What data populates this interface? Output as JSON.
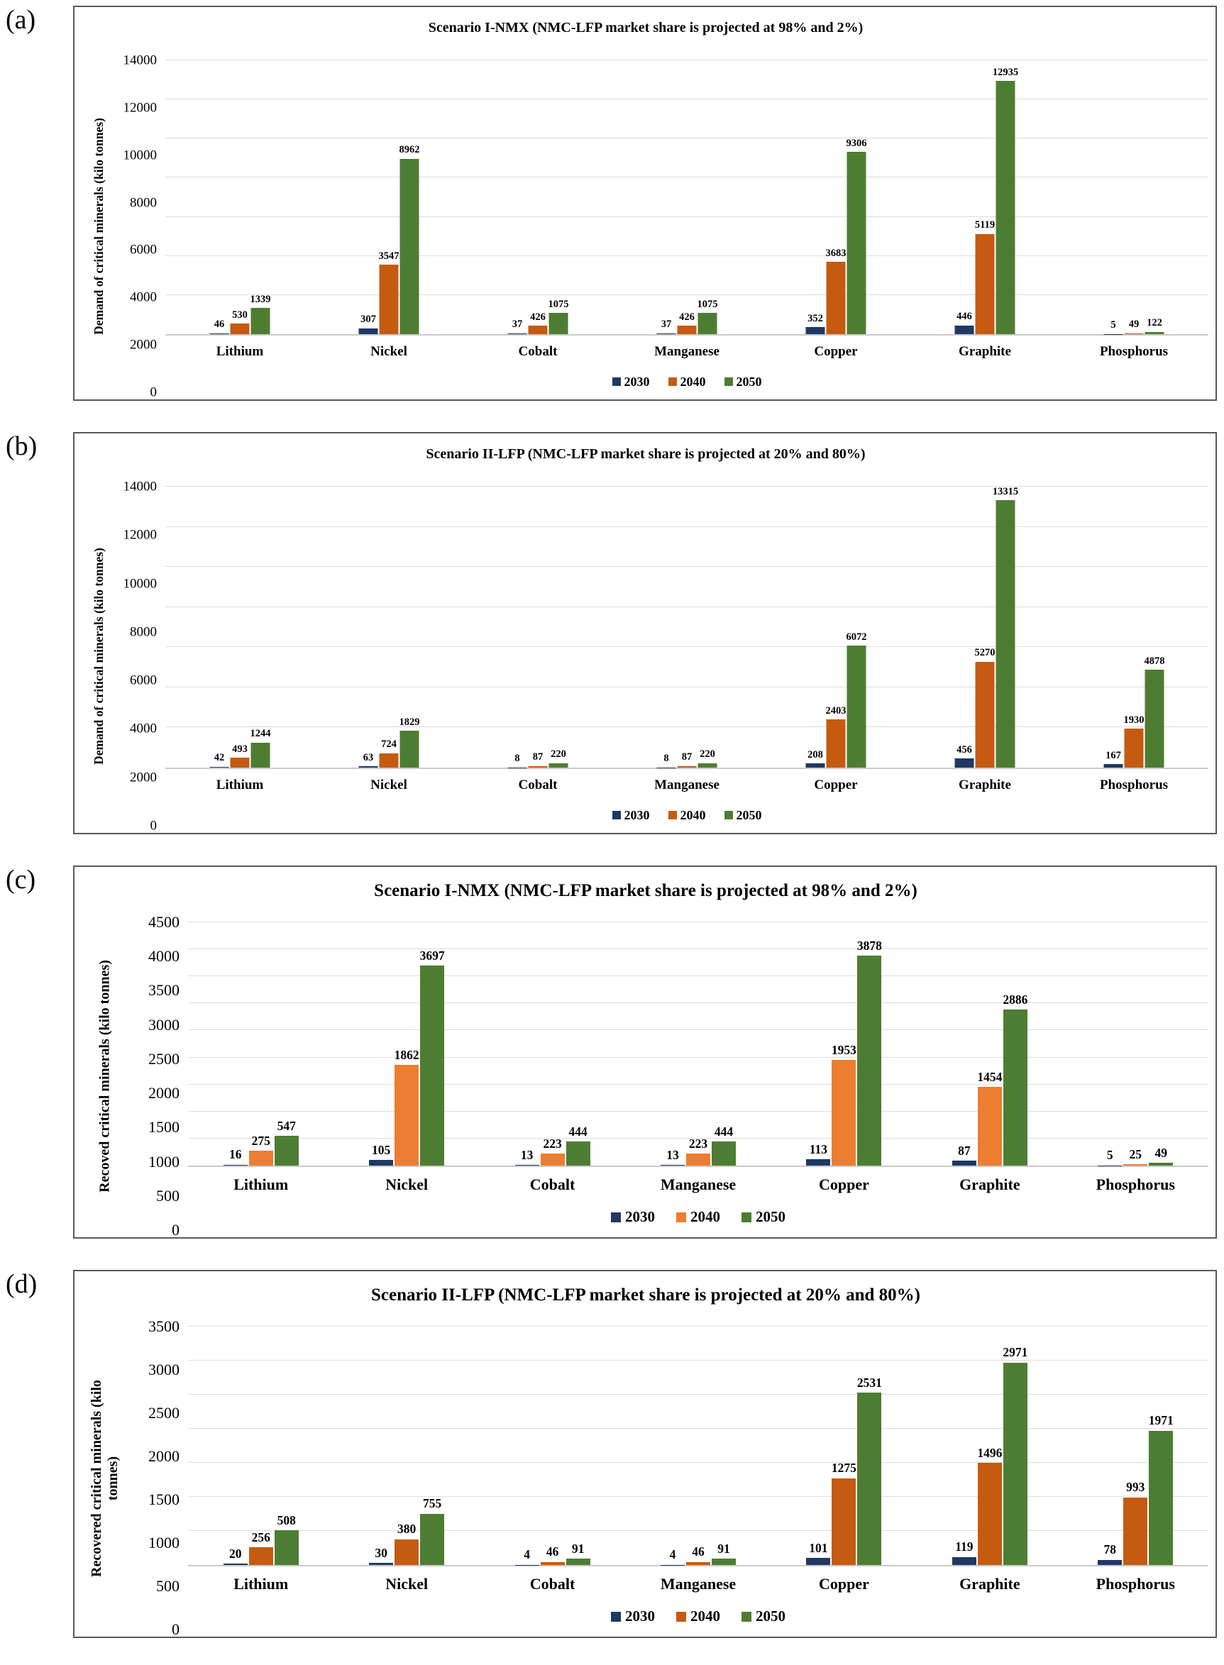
{
  "panel_labels": [
    "(a)",
    "(b)",
    "(c)",
    "(d)"
  ],
  "legend_years": [
    "2030",
    "2040",
    "2050"
  ],
  "series_colors": {
    "2030_navy": "#1f3864",
    "2040_dark_orange": "#c55a11",
    "2040_light_orange": "#ed7d31",
    "2050_green": "#4d7d32"
  },
  "chart_data": [
    {
      "type": "bar",
      "title": "Scenario I-NMX (NMC-LFP market share is projected at 98% and 2%)",
      "ylabel": "Demand of critical minerals (kilo tonnes)",
      "xlabel": "",
      "categories": [
        "Lithium",
        "Nickel",
        "Cobalt",
        "Manganese",
        "Copper",
        "Graphite",
        "Phosphorus"
      ],
      "series": [
        {
          "name": "2030",
          "color": "#1f3864",
          "values": [
            46,
            307,
            37,
            37,
            352,
            446,
            5
          ]
        },
        {
          "name": "2040",
          "color": "#c55a11",
          "values": [
            530,
            3547,
            426,
            426,
            3683,
            5119,
            49
          ]
        },
        {
          "name": "2050",
          "color": "#4d7d32",
          "values": [
            1339,
            8962,
            1075,
            1075,
            9306,
            12935,
            122
          ]
        }
      ],
      "ylim": [
        0,
        14000
      ],
      "ytick_step": 2000,
      "grid": true,
      "legend_position": "bottom"
    },
    {
      "type": "bar",
      "title": "Scenario II-LFP (NMC-LFP market share is projected at 20% and 80%)",
      "ylabel": "Demand of critical minerals (kilo tonnes)",
      "xlabel": "",
      "categories": [
        "Lithium",
        "Nickel",
        "Cobalt",
        "Manganese",
        "Copper",
        "Graphite",
        "Phosphorus"
      ],
      "series": [
        {
          "name": "2030",
          "color": "#1f3864",
          "values": [
            42,
            63,
            8,
            8,
            208,
            456,
            167
          ]
        },
        {
          "name": "2040",
          "color": "#c55a11",
          "values": [
            493,
            724,
            87,
            87,
            2403,
            5270,
            1930
          ]
        },
        {
          "name": "2050",
          "color": "#4d7d32",
          "values": [
            1244,
            1829,
            220,
            220,
            6072,
            13315,
            4878
          ]
        }
      ],
      "ylim": [
        0,
        14000
      ],
      "ytick_step": 2000,
      "grid": true,
      "legend_position": "bottom"
    },
    {
      "type": "bar",
      "title": "Scenario I-NMX (NMC-LFP market share is projected at 98% and 2%)",
      "ylabel": "Recoved critical minerals (kilo tonnes)",
      "xlabel": "",
      "categories": [
        "Lithium",
        "Nickel",
        "Cobalt",
        "Manganese",
        "Copper",
        "Graphite",
        "Phosphorus"
      ],
      "series": [
        {
          "name": "2030",
          "color": "#1f3864",
          "values": [
            16,
            105,
            13,
            13,
            113,
            87,
            5
          ]
        },
        {
          "name": "2040",
          "color": "#ed7d31",
          "values": [
            275,
            1862,
            223,
            223,
            1953,
            1454,
            25
          ]
        },
        {
          "name": "2050",
          "color": "#4d7d32",
          "values": [
            547,
            3697,
            444,
            444,
            3878,
            2886,
            49
          ]
        }
      ],
      "ylim": [
        0,
        4500
      ],
      "ytick_step": 500,
      "grid": true,
      "legend_position": "bottom"
    },
    {
      "type": "bar",
      "title": "Scenario II-LFP (NMC-LFP market share is projected at 20% and 80%)",
      "ylabel": "Recovered critical minerals (kilo tonnes)",
      "xlabel": "",
      "categories": [
        "Lithium",
        "Nickel",
        "Cobalt",
        "Manganese",
        "Copper",
        "Graphite",
        "Phosphorus"
      ],
      "series": [
        {
          "name": "2030",
          "color": "#1f3864",
          "values": [
            20,
            30,
            4,
            4,
            101,
            119,
            78
          ]
        },
        {
          "name": "2040",
          "color": "#c55a11",
          "values": [
            256,
            380,
            46,
            46,
            1275,
            1496,
            993
          ]
        },
        {
          "name": "2050",
          "color": "#4d7d32",
          "values": [
            508,
            755,
            91,
            91,
            2531,
            2971,
            1971
          ]
        }
      ],
      "ylim": [
        0,
        3500
      ],
      "ytick_step": 500,
      "grid": true,
      "legend_position": "bottom"
    }
  ]
}
